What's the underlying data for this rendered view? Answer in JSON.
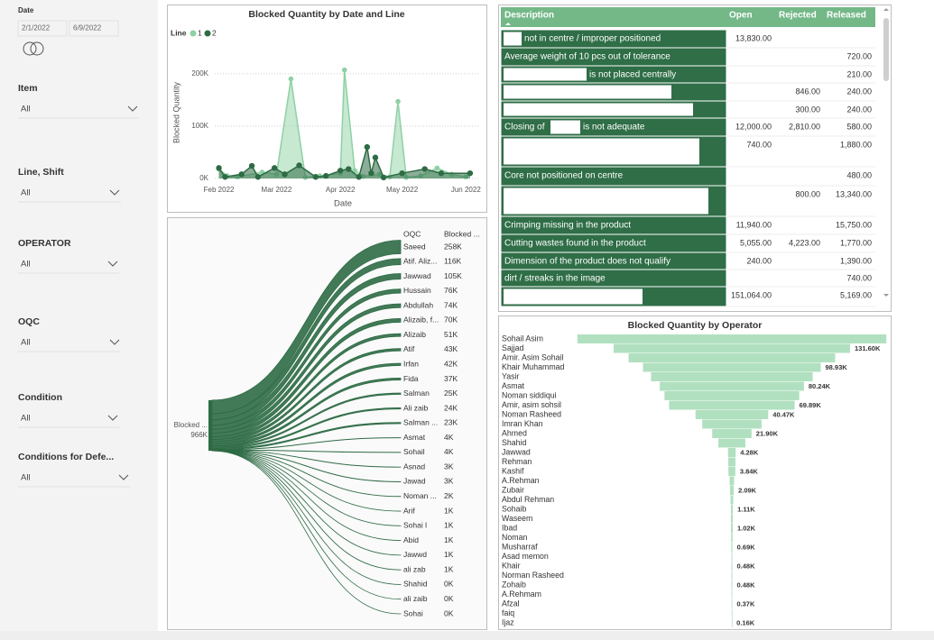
{
  "slicers": {
    "date": {
      "title": "Date",
      "start": "2/1/2022",
      "end": "6/9/2022"
    },
    "items": [
      {
        "title": "Item",
        "value": "All"
      },
      {
        "title": "Line, Shift",
        "value": "All"
      },
      {
        "title": "OPERATOR",
        "value": "All"
      },
      {
        "title": "OQC",
        "value": "All"
      },
      {
        "title": "Condition",
        "value": "All"
      },
      {
        "title": "Conditions for Defe...",
        "value": "All"
      }
    ]
  },
  "line_chart": {
    "type": "area",
    "title": "Blocked Quantity by Date and Line",
    "legend_title": "Line",
    "x_label": "Date",
    "y_label": "Blocked Quantity",
    "xlim": [
      "2022-01-30",
      "2022-06-07"
    ],
    "xticks": [
      {
        "value": "2022-02-01",
        "label": "Feb 2022"
      },
      {
        "value": "2022-03-01",
        "label": "Mar 2022"
      },
      {
        "value": "2022-04-01",
        "label": "Apr 2022"
      },
      {
        "value": "2022-05-01",
        "label": "May 2022"
      },
      {
        "value": "2022-06-01",
        "label": "Jun 2022"
      }
    ],
    "ylim": [
      0,
      215000
    ],
    "yticks": [
      {
        "value": 0,
        "label": "0K"
      },
      {
        "value": 100000,
        "label": "100K"
      },
      {
        "value": 200000,
        "label": "200K"
      }
    ],
    "grid": true,
    "series": [
      {
        "name": "1",
        "color": "#8fd1a4",
        "x": [
          "2022-02-01",
          "2022-02-05",
          "2022-02-10",
          "2022-02-22",
          "2022-03-01",
          "2022-03-08",
          "2022-03-15",
          "2022-03-22",
          "2022-04-01",
          "2022-04-03",
          "2022-04-08",
          "2022-04-12",
          "2022-04-20",
          "2022-04-25",
          "2022-04-29",
          "2022-05-03",
          "2022-05-10",
          "2022-05-18",
          "2022-05-25",
          "2022-06-01"
        ],
        "values": [
          18000,
          5000,
          3000,
          12000,
          8000,
          190000,
          2000,
          5000,
          10000,
          207000,
          15000,
          4000,
          8000,
          3000,
          147000,
          2000,
          5000,
          20000,
          8000,
          3000
        ]
      },
      {
        "name": "2",
        "color": "#2e6b45",
        "x": [
          "2022-02-01",
          "2022-02-04",
          "2022-02-12",
          "2022-02-17",
          "2022-02-20",
          "2022-02-28",
          "2022-03-05",
          "2022-03-12",
          "2022-03-20",
          "2022-03-25",
          "2022-04-01",
          "2022-04-05",
          "2022-04-10",
          "2022-04-14",
          "2022-04-16",
          "2022-04-18",
          "2022-04-22",
          "2022-05-01",
          "2022-05-12",
          "2022-05-20",
          "2022-06-03"
        ],
        "values": [
          20000,
          3000,
          8000,
          24000,
          3000,
          20000,
          8000,
          25000,
          3000,
          5000,
          15000,
          18000,
          3000,
          60000,
          10000,
          40000,
          2000,
          10000,
          18000,
          10000,
          10000
        ]
      }
    ]
  },
  "oqc_chart": {
    "type": "decomposition",
    "root_label": "Blocked ...",
    "root_value": 966000,
    "root_value_label": "966K",
    "column_headers": [
      "OQC",
      "Blocked ..."
    ],
    "color": "#2e6b45",
    "categories": [
      "Saeed",
      "Atif. Aliz...",
      "Jawwad",
      "Hussain",
      "Abdullah",
      "Alizaib, f...",
      "Alizaib",
      "Atif",
      "Irfan",
      "Fida",
      "Salman",
      "Ali zaib",
      "Salman ...",
      "Asmat",
      "Sohail",
      "Asnad",
      "Jawad",
      "Noman ...",
      "Arif",
      "Sohai l",
      "Abid",
      "Jawwd",
      "ali zab",
      "Shahid",
      "ali zaib",
      "Sohai"
    ],
    "values": [
      258000,
      116000,
      105000,
      76000,
      74000,
      70000,
      51000,
      43000,
      42000,
      37000,
      25000,
      24000,
      23000,
      4000,
      4000,
      3000,
      3000,
      2000,
      1000,
      1000,
      1000,
      1000,
      1000,
      300,
      300,
      300
    ],
    "value_labels": [
      "258K",
      "116K",
      "105K",
      "76K",
      "74K",
      "70K",
      "51K",
      "43K",
      "42K",
      "37K",
      "25K",
      "24K",
      "23K",
      "4K",
      "4K",
      "3K",
      "3K",
      "2K",
      "1K",
      "1K",
      "1K",
      "1K",
      "1K",
      "0K",
      "0K",
      "0K"
    ]
  },
  "table": {
    "columns": [
      "Description",
      "Open",
      "Rejected",
      "Released"
    ],
    "rows": [
      {
        "description": [
          "not in centre / improper positioned"
        ],
        "cells": [
          "13,830.00",
          null,
          null
        ]
      },
      {
        "description": [
          "Average weight of 10 pcs out of tolerance"
        ],
        "cells": [
          null,
          null,
          "720.00"
        ]
      },
      {
        "description": [
          "is not placed centrally"
        ],
        "cells": [
          null,
          null,
          "210.00"
        ]
      },
      {
        "cells": [
          null,
          "846.00",
          "240.00"
        ]
      },
      {
        "cells": [
          null,
          "300.00",
          "240.00"
        ]
      },
      {
        "description": [
          "Closing of",
          "is not adequate"
        ],
        "cells": [
          "12,000.00",
          "2,810.00",
          "580.00"
        ]
      },
      {
        "cells": [
          "740.00",
          null,
          "1,880.00"
        ]
      },
      {
        "description": [
          "Core not positioned on centre"
        ],
        "cells": [
          null,
          null,
          "480.00"
        ]
      },
      {
        "cells": [
          null,
          "800.00",
          "13,340.00"
        ]
      },
      {
        "description": [
          "Crimping missing in the product"
        ],
        "cells": [
          "11,940.00",
          null,
          "15,750.00"
        ]
      },
      {
        "description": [
          "Cutting wastes found in the product"
        ],
        "cells": [
          "5,055.00",
          "4,223.00",
          "1,770.00"
        ]
      },
      {
        "description": [
          "Dimension of the product does not qualify"
        ],
        "cells": [
          "240.00",
          null,
          "1,390.00"
        ]
      },
      {
        "description": [
          "dirt / streaks in the image"
        ],
        "cells": [
          null,
          null,
          "740.00"
        ]
      },
      {
        "cells": [
          "151,064.00",
          null,
          "5,169.00"
        ]
      }
    ]
  },
  "operator_chart": {
    "type": "funnel",
    "title": "Blocked Quantity by Operator",
    "color": "#b1e0c0",
    "categories": [
      "Sohail Asim",
      "Sajjad",
      "Amir. Asim Sohail",
      "Khair Muhammad",
      "Yasir",
      "Asmat",
      "Noman siddiqui",
      "Amir, asim sohsil",
      "Noman Rasheed",
      "Imran Khan",
      "Ahmed",
      "Shahid",
      "Jawwad",
      "Rehman",
      "Kashif",
      "A.Rehman",
      "Zubair",
      "Abdul Rehman",
      "Sohaib",
      "Waseem",
      "Ibad",
      "Noman",
      "Musharraf",
      "Asad memon",
      "Khair",
      "Norman Rasheed",
      "Zohaib",
      "A.Rehmam",
      "Afzal",
      "faiq",
      "Ijaz"
    ],
    "values": [
      172000,
      131600,
      115000,
      98930,
      90000,
      80240,
      75000,
      69890,
      40470,
      33000,
      21900,
      15000,
      4280,
      4000,
      3840,
      2500,
      2090,
      1500,
      1110,
      1050,
      1020,
      800,
      690,
      500,
      480,
      480,
      480,
      400,
      370,
      200,
      160
    ],
    "value_labels": [
      null,
      "131.60K",
      null,
      "98.93K",
      null,
      "80.24K",
      null,
      "69.89K",
      "40.47K",
      null,
      "21.90K",
      null,
      "4.28K",
      null,
      "3.84K",
      null,
      "2.09K",
      null,
      "1.11K",
      null,
      "1.02K",
      null,
      "0.69K",
      null,
      "0.48K",
      null,
      "0.48K",
      null,
      "0.37K",
      null,
      "0.16K"
    ]
  }
}
